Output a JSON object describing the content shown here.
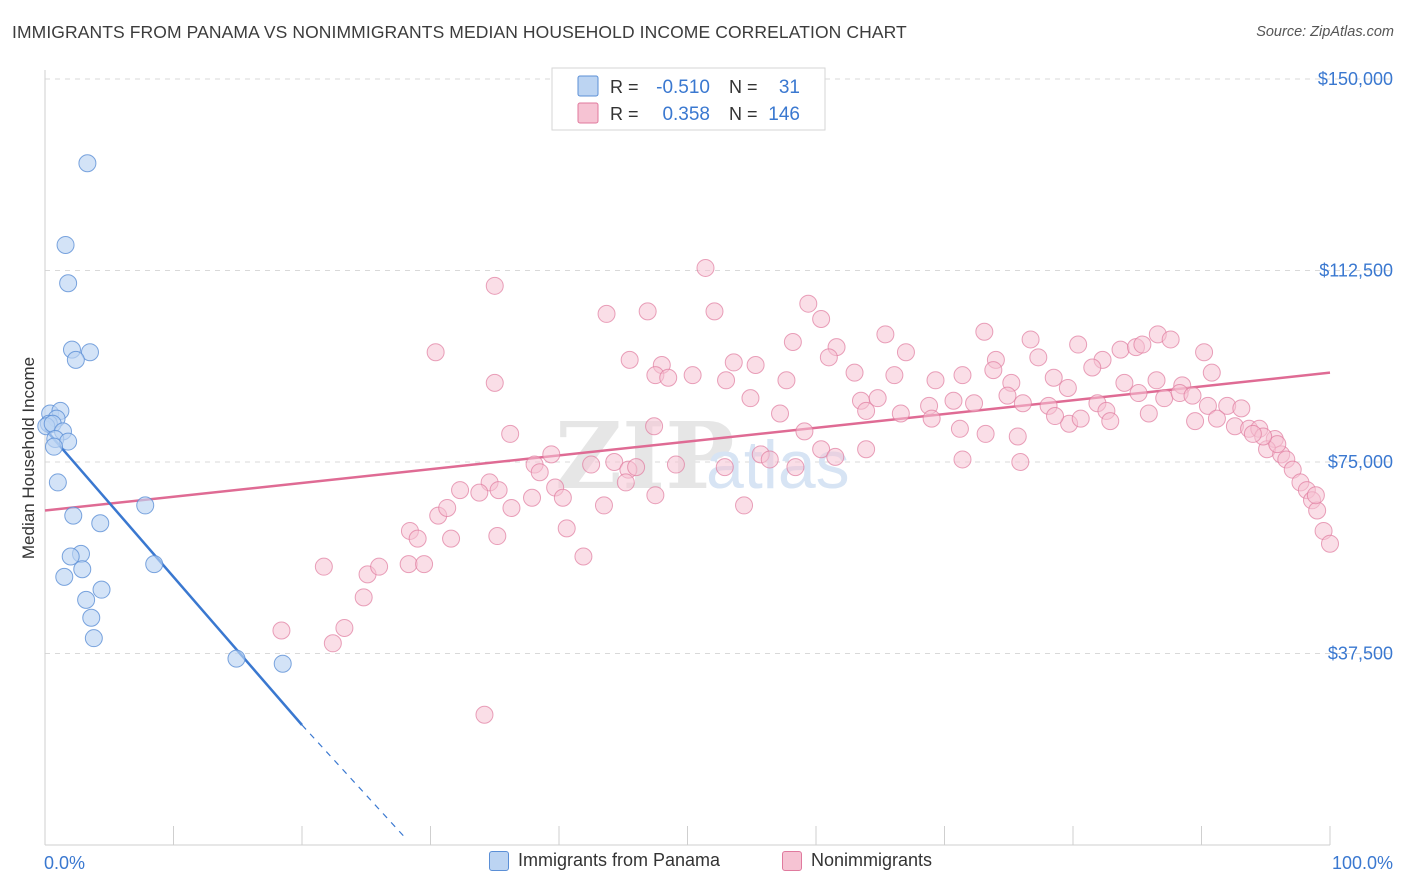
{
  "title": "IMMIGRANTS FROM PANAMA VS NONIMMIGRANTS MEDIAN HOUSEHOLD INCOME CORRELATION CHART",
  "source": "Source: ZipAtlas.com",
  "watermark": {
    "zip": "ZIP",
    "atlas": "atlas"
  },
  "colors": {
    "blue": "#5b8fd6",
    "blue_fill": "#bcd4f2",
    "blue_line": "#3a78d0",
    "pink": "#e07a9e",
    "pink_fill": "#f6c3d3",
    "pink_line": "#df6b94",
    "axis_text": "#3a78d0",
    "grid": "#d9d9d9"
  },
  "legend": {
    "rows": [
      {
        "r_label": "R =",
        "r_value": "-0.510",
        "n_label": "N =",
        "n_value": "31"
      },
      {
        "r_label": "R =",
        "r_value": "0.358",
        "n_label": "N =",
        "n_value": "146"
      }
    ]
  },
  "bottom_legend": {
    "blue": "Immigrants from Panama",
    "pink": "Nonimmigrants"
  },
  "chart_data": {
    "type": "scatter",
    "title": "IMMIGRANTS FROM PANAMA VS NONIMMIGRANTS MEDIAN HOUSEHOLD INCOME CORRELATION CHART",
    "xlabel": "",
    "ylabel": "Median Household Income",
    "xlim": [
      0,
      100
    ],
    "ylim": [
      0,
      150000
    ],
    "x_tick_labels": [
      "0.0%",
      "100.0%"
    ],
    "y_ticks": [
      37500,
      75000,
      112500,
      150000
    ],
    "y_tick_labels": [
      "$37,500",
      "$75,000",
      "$112,500",
      "$150,000"
    ],
    "grid": true,
    "legend_position": "top-center",
    "series": [
      {
        "name": "Immigrants from Panama",
        "color": "blue",
        "points": [
          [
            3.3,
            133500
          ],
          [
            1.6,
            117500
          ],
          [
            1.8,
            110000
          ],
          [
            2.1,
            97000
          ],
          [
            3.5,
            96500
          ],
          [
            2.4,
            95000
          ],
          [
            0.4,
            84500
          ],
          [
            1.2,
            85000
          ],
          [
            0.9,
            83500
          ],
          [
            0.3,
            82500
          ],
          [
            0.1,
            82000
          ],
          [
            0.6,
            82500
          ],
          [
            1.4,
            81000
          ],
          [
            0.8,
            79500
          ],
          [
            1.8,
            79000
          ],
          [
            0.7,
            78000
          ],
          [
            1.0,
            71000
          ],
          [
            2.2,
            64500
          ],
          [
            7.8,
            66500
          ],
          [
            4.3,
            63000
          ],
          [
            2.8,
            57000
          ],
          [
            2.0,
            56500
          ],
          [
            8.5,
            55000
          ],
          [
            2.9,
            54000
          ],
          [
            1.5,
            52500
          ],
          [
            4.4,
            50000
          ],
          [
            3.2,
            48000
          ],
          [
            3.6,
            44500
          ],
          [
            3.8,
            40500
          ],
          [
            14.9,
            36500
          ],
          [
            18.5,
            35500
          ]
        ],
        "trend": {
          "x": [
            0,
            20
          ],
          "y": [
            81500,
            23500
          ]
        },
        "trend_dashed": {
          "x": [
            20,
            28
          ],
          "y": [
            23500,
            1500
          ]
        }
      },
      {
        "name": "Nonimmigrants",
        "color": "pink",
        "points": [
          [
            51.4,
            113000
          ],
          [
            35.0,
            109500
          ],
          [
            43.7,
            104000
          ],
          [
            46.9,
            104500
          ],
          [
            52.1,
            104500
          ],
          [
            59.4,
            106000
          ],
          [
            60.4,
            103000
          ],
          [
            65.4,
            100000
          ],
          [
            58.2,
            98500
          ],
          [
            61.6,
            97500
          ],
          [
            73.1,
            100500
          ],
          [
            76.7,
            99000
          ],
          [
            80.4,
            98000
          ],
          [
            86.6,
            100000
          ],
          [
            87.6,
            99000
          ],
          [
            83.7,
            97000
          ],
          [
            84.9,
            97500
          ],
          [
            85.4,
            98000
          ],
          [
            30.4,
            96500
          ],
          [
            45.5,
            95000
          ],
          [
            48.0,
            94000
          ],
          [
            53.6,
            94500
          ],
          [
            55.3,
            94000
          ],
          [
            61.0,
            95500
          ],
          [
            67.0,
            96500
          ],
          [
            74.0,
            95000
          ],
          [
            77.3,
            95500
          ],
          [
            82.3,
            95000
          ],
          [
            90.2,
            96500
          ],
          [
            81.5,
            93500
          ],
          [
            35.0,
            90500
          ],
          [
            47.5,
            92000
          ],
          [
            48.5,
            91500
          ],
          [
            50.4,
            92000
          ],
          [
            53.0,
            91000
          ],
          [
            57.7,
            91000
          ],
          [
            63.0,
            92500
          ],
          [
            66.1,
            92000
          ],
          [
            69.3,
            91000
          ],
          [
            71.4,
            92000
          ],
          [
            73.8,
            93000
          ],
          [
            75.2,
            90500
          ],
          [
            78.5,
            91500
          ],
          [
            79.6,
            89500
          ],
          [
            84.0,
            90500
          ],
          [
            86.5,
            91000
          ],
          [
            88.5,
            90000
          ],
          [
            90.8,
            92500
          ],
          [
            54.9,
            87500
          ],
          [
            57.2,
            84500
          ],
          [
            63.5,
            87000
          ],
          [
            64.8,
            87500
          ],
          [
            68.8,
            86000
          ],
          [
            70.7,
            87000
          ],
          [
            72.3,
            86500
          ],
          [
            74.9,
            88000
          ],
          [
            76.1,
            86500
          ],
          [
            78.1,
            86000
          ],
          [
            81.9,
            86500
          ],
          [
            82.6,
            85000
          ],
          [
            85.1,
            88500
          ],
          [
            87.1,
            87500
          ],
          [
            88.3,
            88500
          ],
          [
            89.3,
            88000
          ],
          [
            90.5,
            86000
          ],
          [
            92.0,
            86000
          ],
          [
            93.1,
            85500
          ],
          [
            36.2,
            80500
          ],
          [
            47.4,
            82000
          ],
          [
            59.1,
            81000
          ],
          [
            63.9,
            85000
          ],
          [
            66.6,
            84500
          ],
          [
            69.0,
            83500
          ],
          [
            71.2,
            81500
          ],
          [
            73.2,
            80500
          ],
          [
            75.7,
            80000
          ],
          [
            79.7,
            82500
          ],
          [
            91.2,
            83500
          ],
          [
            80.6,
            83500
          ],
          [
            78.6,
            84000
          ],
          [
            82.9,
            83000
          ],
          [
            85.9,
            84500
          ],
          [
            89.5,
            83000
          ],
          [
            92.6,
            82000
          ],
          [
            93.7,
            81500
          ],
          [
            94.5,
            81500
          ],
          [
            95.7,
            79500
          ],
          [
            95.1,
            77500
          ],
          [
            96.2,
            76500
          ],
          [
            96.6,
            75500
          ],
          [
            97.1,
            73500
          ],
          [
            97.7,
            71000
          ],
          [
            98.2,
            69500
          ],
          [
            98.6,
            67500
          ],
          [
            99.0,
            65500
          ],
          [
            99.5,
            61500
          ],
          [
            100.0,
            59000
          ],
          [
            95.9,
            78500
          ],
          [
            94.8,
            80000
          ],
          [
            98.9,
            68500
          ],
          [
            94.0,
            80500
          ],
          [
            38.1,
            74500
          ],
          [
            39.4,
            76500
          ],
          [
            42.5,
            74500
          ],
          [
            44.3,
            75000
          ],
          [
            45.4,
            73500
          ],
          [
            46.0,
            74000
          ],
          [
            49.1,
            74500
          ],
          [
            52.9,
            74000
          ],
          [
            55.7,
            76500
          ],
          [
            56.4,
            75500
          ],
          [
            60.4,
            77500
          ],
          [
            61.5,
            76000
          ],
          [
            63.9,
            77500
          ],
          [
            71.4,
            75500
          ],
          [
            75.9,
            75000
          ],
          [
            32.3,
            69500
          ],
          [
            34.6,
            71000
          ],
          [
            35.3,
            69500
          ],
          [
            37.9,
            68000
          ],
          [
            38.5,
            73000
          ],
          [
            39.7,
            70000
          ],
          [
            40.3,
            68000
          ],
          [
            43.5,
            66500
          ],
          [
            45.2,
            71000
          ],
          [
            47.5,
            68500
          ],
          [
            54.4,
            66500
          ],
          [
            58.4,
            74000
          ],
          [
            28.4,
            61500
          ],
          [
            30.6,
            64500
          ],
          [
            31.3,
            66000
          ],
          [
            33.8,
            69000
          ],
          [
            36.3,
            66000
          ],
          [
            40.6,
            62000
          ],
          [
            29.0,
            60000
          ],
          [
            31.6,
            60000
          ],
          [
            35.2,
            60500
          ],
          [
            41.9,
            56500
          ],
          [
            21.7,
            54500
          ],
          [
            25.1,
            53000
          ],
          [
            26.0,
            54500
          ],
          [
            28.3,
            55000
          ],
          [
            29.5,
            55000
          ],
          [
            24.8,
            48500
          ],
          [
            18.4,
            42000
          ],
          [
            23.3,
            42500
          ],
          [
            22.4,
            39500
          ],
          [
            34.2,
            25500
          ]
        ],
        "trend": {
          "x": [
            0,
            100
          ],
          "y": [
            65500,
            92500
          ]
        }
      }
    ]
  }
}
